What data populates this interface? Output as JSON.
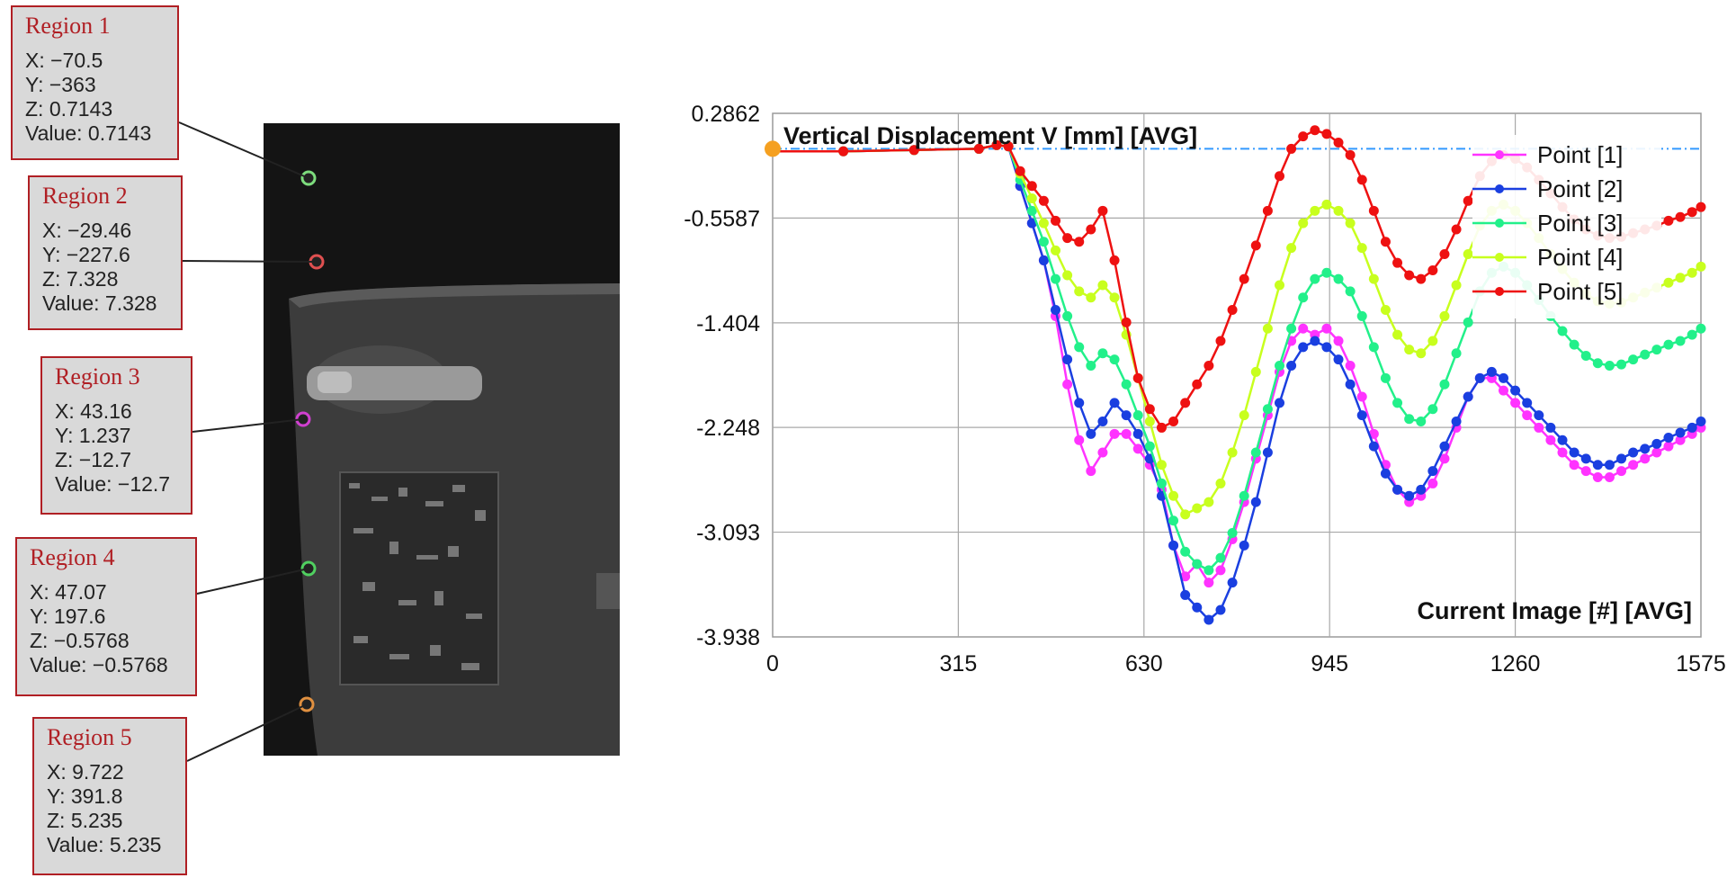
{
  "regions": [
    {
      "title": "Region 1",
      "x": "X: −70.5",
      "y": "Y: −363",
      "z": "Z: 0.7143",
      "value": "Value: 0.7143"
    },
    {
      "title": "Region 2",
      "x": "X: −29.46",
      "y": "Y: −227.6",
      "z": "Z: 7.328",
      "value": "Value: 7.328"
    },
    {
      "title": "Region 3",
      "x": "X: 43.16",
      "y": "Y: 1.237",
      "z": "Z: −12.7",
      "value": "Value: −12.7"
    },
    {
      "title": "Region 4",
      "x": "X: 47.07",
      "y": "Y: 197.6",
      "z": "Z: −0.5768",
      "value": "Value: −0.5768"
    },
    {
      "title": "Region 5",
      "x": "X: 9.722",
      "y": "Y: 391.8",
      "z": "Z: 5.235",
      "value": "Value: 5.235"
    }
  ],
  "colors": {
    "region_border": "#b01f24",
    "point1": "#ff33ff",
    "point2": "#1a3fe0",
    "point3": "#22f08a",
    "point4": "#c8ff1e",
    "point5": "#ee1111",
    "reference": "#3399ff",
    "origin_marker": "#f5a020"
  },
  "chart_data": {
    "type": "line",
    "title": "Vertical Displacement V [mm] [AVG]",
    "xlabel": "Current Image [#] [AVG]",
    "ylabel": "",
    "xlim": [
      0,
      1575
    ],
    "ylim": [
      -3.938,
      0.2862
    ],
    "xticks": [
      "0",
      "315",
      "630",
      "945",
      "1260",
      "1575"
    ],
    "yticks": [
      "0.2862",
      "-0.5587",
      "-1.404",
      "-2.248",
      "-3.093",
      "-3.938"
    ],
    "grid": true,
    "legend_position": "top-right",
    "reference_line": 0.0,
    "series": [
      {
        "name": "Point [1]",
        "color": "#ff33ff",
        "x": [
          0,
          120,
          240,
          350,
          380,
          400,
          420,
          440,
          460,
          480,
          500,
          520,
          540,
          560,
          580,
          600,
          620,
          640,
          660,
          680,
          700,
          720,
          740,
          760,
          780,
          800,
          820,
          840,
          860,
          880,
          900,
          920,
          940,
          960,
          980,
          1000,
          1020,
          1040,
          1060,
          1080,
          1100,
          1120,
          1140,
          1160,
          1180,
          1200,
          1220,
          1240,
          1260,
          1280,
          1300,
          1320,
          1340,
          1360,
          1380,
          1400,
          1420,
          1440,
          1460,
          1480,
          1500,
          1520,
          1540,
          1560,
          1575
        ],
        "y": [
          -0.02,
          -0.02,
          -0.01,
          0.0,
          0.03,
          0.02,
          -0.3,
          -0.6,
          -0.9,
          -1.35,
          -1.9,
          -2.35,
          -2.6,
          -2.45,
          -2.3,
          -2.3,
          -2.42,
          -2.55,
          -2.75,
          -3.2,
          -3.45,
          -3.35,
          -3.5,
          -3.4,
          -3.15,
          -2.85,
          -2.5,
          -2.15,
          -1.8,
          -1.55,
          -1.45,
          -1.5,
          -1.45,
          -1.55,
          -1.75,
          -2.0,
          -2.3,
          -2.55,
          -2.75,
          -2.85,
          -2.8,
          -2.7,
          -2.5,
          -2.25,
          -2.0,
          -1.85,
          -1.85,
          -1.95,
          -2.05,
          -2.15,
          -2.25,
          -2.35,
          -2.45,
          -2.55,
          -2.6,
          -2.65,
          -2.65,
          -2.6,
          -2.55,
          -2.5,
          -2.45,
          -2.4,
          -2.35,
          -2.3,
          -2.25
        ]
      },
      {
        "name": "Point [2]",
        "color": "#1a3fe0",
        "x": [
          0,
          120,
          240,
          350,
          380,
          400,
          420,
          440,
          460,
          480,
          500,
          520,
          540,
          560,
          580,
          600,
          620,
          640,
          660,
          680,
          700,
          720,
          740,
          760,
          780,
          800,
          820,
          840,
          860,
          880,
          900,
          920,
          940,
          960,
          980,
          1000,
          1020,
          1040,
          1060,
          1080,
          1100,
          1120,
          1140,
          1160,
          1180,
          1200,
          1220,
          1240,
          1260,
          1280,
          1300,
          1320,
          1340,
          1360,
          1380,
          1400,
          1420,
          1440,
          1460,
          1480,
          1500,
          1520,
          1540,
          1560,
          1575
        ],
        "y": [
          -0.02,
          -0.02,
          -0.01,
          0.0,
          0.03,
          0.02,
          -0.3,
          -0.6,
          -0.9,
          -1.3,
          -1.7,
          -2.05,
          -2.3,
          -2.2,
          -2.05,
          -2.15,
          -2.3,
          -2.5,
          -2.8,
          -3.2,
          -3.6,
          -3.7,
          -3.8,
          -3.72,
          -3.5,
          -3.2,
          -2.85,
          -2.45,
          -2.05,
          -1.75,
          -1.6,
          -1.55,
          -1.6,
          -1.7,
          -1.9,
          -2.15,
          -2.4,
          -2.62,
          -2.75,
          -2.8,
          -2.75,
          -2.6,
          -2.4,
          -2.2,
          -2.0,
          -1.85,
          -1.8,
          -1.85,
          -1.95,
          -2.05,
          -2.15,
          -2.25,
          -2.35,
          -2.45,
          -2.5,
          -2.55,
          -2.55,
          -2.5,
          -2.45,
          -2.42,
          -2.38,
          -2.33,
          -2.29,
          -2.25,
          -2.2
        ]
      },
      {
        "name": "Point [3]",
        "color": "#22f08a",
        "x": [
          0,
          120,
          240,
          350,
          380,
          400,
          420,
          440,
          460,
          480,
          500,
          520,
          540,
          560,
          580,
          600,
          620,
          640,
          660,
          680,
          700,
          720,
          740,
          760,
          780,
          800,
          820,
          840,
          860,
          880,
          900,
          920,
          940,
          960,
          980,
          1000,
          1020,
          1040,
          1060,
          1080,
          1100,
          1120,
          1140,
          1160,
          1180,
          1200,
          1220,
          1240,
          1260,
          1280,
          1300,
          1320,
          1340,
          1360,
          1380,
          1400,
          1420,
          1440,
          1460,
          1480,
          1500,
          1520,
          1540,
          1560,
          1575
        ],
        "y": [
          -0.02,
          -0.02,
          -0.01,
          0.0,
          0.03,
          0.02,
          -0.25,
          -0.5,
          -0.75,
          -1.05,
          -1.35,
          -1.6,
          -1.75,
          -1.65,
          -1.7,
          -1.9,
          -2.15,
          -2.4,
          -2.7,
          -3.0,
          -3.25,
          -3.35,
          -3.4,
          -3.3,
          -3.1,
          -2.8,
          -2.45,
          -2.1,
          -1.75,
          -1.45,
          -1.2,
          -1.05,
          -1.0,
          -1.05,
          -1.15,
          -1.35,
          -1.6,
          -1.85,
          -2.05,
          -2.18,
          -2.2,
          -2.1,
          -1.9,
          -1.65,
          -1.4,
          -1.15,
          -1.0,
          -0.95,
          -1.0,
          -1.1,
          -1.22,
          -1.35,
          -1.47,
          -1.58,
          -1.67,
          -1.73,
          -1.75,
          -1.74,
          -1.7,
          -1.66,
          -1.62,
          -1.58,
          -1.55,
          -1.5,
          -1.45
        ]
      },
      {
        "name": "Point [4]",
        "color": "#c8ff1e",
        "x": [
          0,
          120,
          240,
          350,
          380,
          400,
          420,
          440,
          460,
          480,
          500,
          520,
          540,
          560,
          580,
          600,
          620,
          640,
          660,
          680,
          700,
          720,
          740,
          760,
          780,
          800,
          820,
          840,
          860,
          880,
          900,
          920,
          940,
          960,
          980,
          1000,
          1020,
          1040,
          1060,
          1080,
          1100,
          1120,
          1140,
          1160,
          1180,
          1200,
          1220,
          1240,
          1260,
          1280,
          1300,
          1320,
          1340,
          1360,
          1380,
          1400,
          1420,
          1440,
          1460,
          1480,
          1500,
          1520,
          1540,
          1560,
          1575
        ],
        "y": [
          -0.02,
          -0.02,
          -0.01,
          0.0,
          0.03,
          0.02,
          -0.2,
          -0.4,
          -0.6,
          -0.82,
          -1.02,
          -1.15,
          -1.2,
          -1.1,
          -1.2,
          -1.5,
          -1.85,
          -2.2,
          -2.55,
          -2.8,
          -2.95,
          -2.9,
          -2.85,
          -2.7,
          -2.45,
          -2.15,
          -1.8,
          -1.45,
          -1.1,
          -0.8,
          -0.6,
          -0.5,
          -0.45,
          -0.5,
          -0.6,
          -0.8,
          -1.05,
          -1.3,
          -1.5,
          -1.62,
          -1.65,
          -1.55,
          -1.35,
          -1.1,
          -0.85,
          -0.62,
          -0.5,
          -0.45,
          -0.5,
          -0.6,
          -0.72,
          -0.85,
          -0.97,
          -1.08,
          -1.17,
          -1.23,
          -1.25,
          -1.24,
          -1.2,
          -1.16,
          -1.12,
          -1.08,
          -1.04,
          -1.0,
          -0.95
        ]
      },
      {
        "name": "Point [5]",
        "color": "#ee1111",
        "x": [
          0,
          120,
          240,
          350,
          380,
          400,
          420,
          440,
          460,
          480,
          500,
          520,
          540,
          560,
          580,
          600,
          620,
          640,
          660,
          680,
          700,
          720,
          740,
          760,
          780,
          800,
          820,
          840,
          860,
          880,
          900,
          920,
          940,
          960,
          980,
          1000,
          1020,
          1040,
          1060,
          1080,
          1100,
          1120,
          1140,
          1160,
          1180,
          1200,
          1220,
          1240,
          1260,
          1280,
          1300,
          1320,
          1340,
          1360,
          1380,
          1400,
          1420,
          1440,
          1460,
          1480,
          1500,
          1520,
          1540,
          1560,
          1575
        ],
        "y": [
          -0.02,
          -0.02,
          -0.01,
          0.0,
          0.03,
          0.02,
          -0.18,
          -0.3,
          -0.42,
          -0.58,
          -0.72,
          -0.75,
          -0.65,
          -0.5,
          -0.9,
          -1.4,
          -1.85,
          -2.1,
          -2.25,
          -2.2,
          -2.05,
          -1.9,
          -1.75,
          -1.55,
          -1.3,
          -1.05,
          -0.78,
          -0.5,
          -0.22,
          0.0,
          0.1,
          0.15,
          0.12,
          0.05,
          -0.05,
          -0.25,
          -0.5,
          -0.75,
          -0.92,
          -1.02,
          -1.05,
          -0.98,
          -0.85,
          -0.65,
          -0.42,
          -0.22,
          -0.1,
          -0.05,
          -0.08,
          -0.15,
          -0.25,
          -0.36,
          -0.47,
          -0.57,
          -0.65,
          -0.7,
          -0.72,
          -0.71,
          -0.68,
          -0.65,
          -0.62,
          -0.58,
          -0.55,
          -0.51,
          -0.47
        ]
      }
    ]
  }
}
